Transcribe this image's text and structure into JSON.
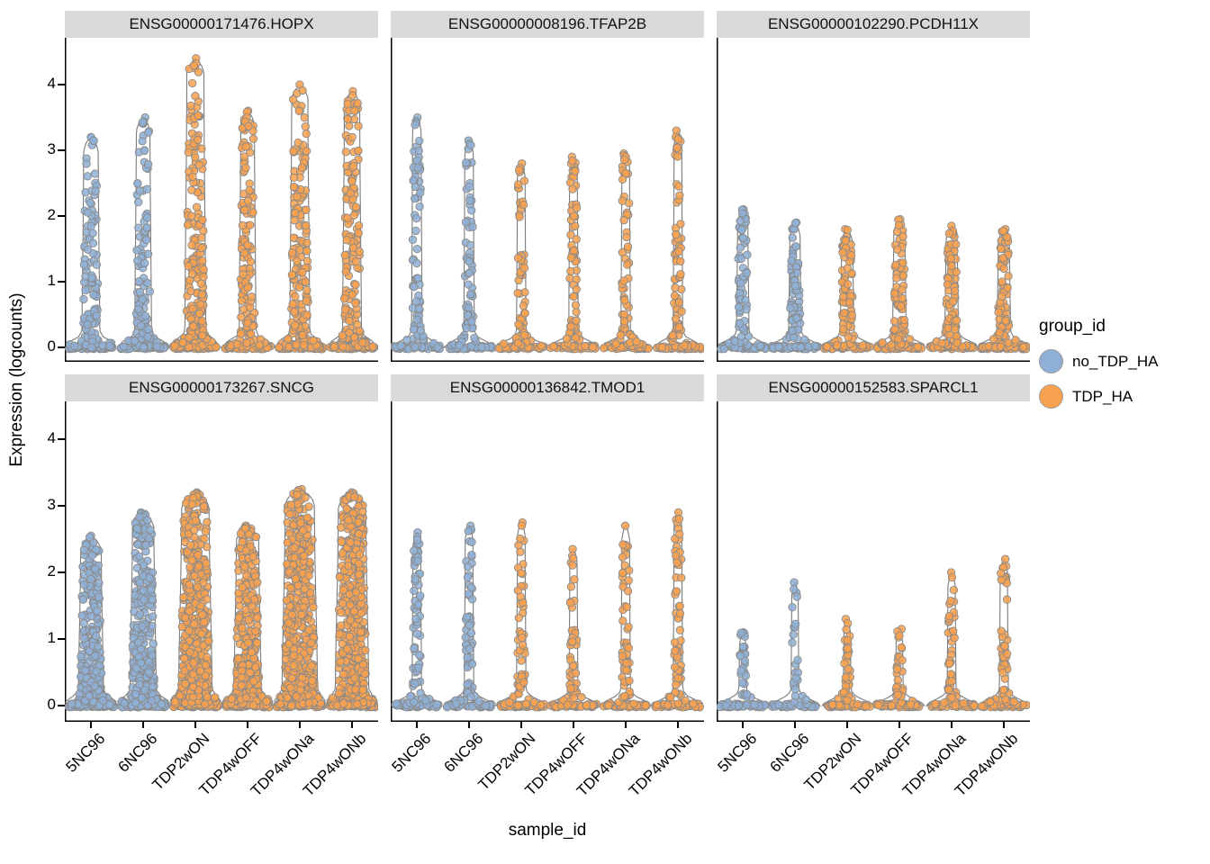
{
  "chart_data": {
    "type": "violin-jitter",
    "xlabel": "sample_id",
    "ylabel": "Expression (logcounts)",
    "yticks": [
      0,
      1,
      2,
      3,
      4
    ],
    "ylim": [
      0,
      4.5
    ],
    "categories": [
      "5NC96",
      "6NC96",
      "TDP2wON",
      "TDP4wOFF",
      "TDP4wONa",
      "TDP4wONb"
    ],
    "category_groups": [
      "no_TDP_HA",
      "no_TDP_HA",
      "TDP_HA",
      "TDP_HA",
      "TDP_HA",
      "TDP_HA"
    ],
    "legend": {
      "title": "group_id",
      "entries": [
        {
          "label": "no_TDP_HA",
          "color": "#8FB0D6"
        },
        {
          "label": "TDP_HA",
          "color": "#F9A14E"
        }
      ]
    },
    "style": {
      "violin_outline": "#7a7a7a",
      "point_stroke": "#8a8a8a",
      "strip_bg": "#D9D9D9",
      "axis_color": "#000000",
      "panel_bg": "#ffffff"
    },
    "facets": [
      {
        "title": "ENSG00000171476.HOPX",
        "skew": 2.2,
        "n_zero": 50,
        "samples": [
          {
            "max": 3.2,
            "n": 130,
            "stem": 0.34
          },
          {
            "max": 3.5,
            "n": 120,
            "stem": 0.32
          },
          {
            "max": 4.4,
            "n": 210,
            "stem": 0.4
          },
          {
            "max": 3.6,
            "n": 140,
            "stem": 0.32
          },
          {
            "max": 4.0,
            "n": 190,
            "stem": 0.38
          },
          {
            "max": 3.9,
            "n": 180,
            "stem": 0.36
          }
        ]
      },
      {
        "title": "ENSG00000008196.TFAP2B",
        "skew": 1.8,
        "n_zero": 50,
        "samples": [
          {
            "max": 3.5,
            "n": 80,
            "stem": 0.2
          },
          {
            "max": 3.15,
            "n": 70,
            "stem": 0.2
          },
          {
            "max": 2.8,
            "n": 65,
            "stem": 0.18
          },
          {
            "max": 2.9,
            "n": 75,
            "stem": 0.18
          },
          {
            "max": 2.95,
            "n": 65,
            "stem": 0.18
          },
          {
            "max": 3.3,
            "n": 75,
            "stem": 0.18
          }
        ]
      },
      {
        "title": "ENSG00000102290.PCDH11X",
        "skew": 1.4,
        "n_zero": 50,
        "samples": [
          {
            "max": 2.1,
            "n": 65,
            "stem": 0.24
          },
          {
            "max": 1.9,
            "n": 75,
            "stem": 0.24
          },
          {
            "max": 1.8,
            "n": 80,
            "stem": 0.26
          },
          {
            "max": 1.95,
            "n": 85,
            "stem": 0.26
          },
          {
            "max": 1.85,
            "n": 85,
            "stem": 0.26
          },
          {
            "max": 1.8,
            "n": 85,
            "stem": 0.26
          }
        ]
      },
      {
        "title": "ENSG00000173267.SNCG",
        "skew": 1.6,
        "n_zero": 70,
        "samples": [
          {
            "max": 2.55,
            "n": 260,
            "stem": 0.48
          },
          {
            "max": 2.9,
            "n": 300,
            "stem": 0.5
          },
          {
            "max": 3.2,
            "n": 460,
            "stem": 0.64
          },
          {
            "max": 2.7,
            "n": 320,
            "stem": 0.52
          },
          {
            "max": 3.25,
            "n": 520,
            "stem": 0.68
          },
          {
            "max": 3.2,
            "n": 470,
            "stem": 0.64
          }
        ]
      },
      {
        "title": "ENSG00000136842.TMOD1",
        "skew": 1.8,
        "n_zero": 50,
        "samples": [
          {
            "max": 2.6,
            "n": 75,
            "stem": 0.18
          },
          {
            "max": 2.7,
            "n": 65,
            "stem": 0.18
          },
          {
            "max": 2.75,
            "n": 60,
            "stem": 0.18
          },
          {
            "max": 2.35,
            "n": 55,
            "stem": 0.17
          },
          {
            "max": 2.7,
            "n": 60,
            "stem": 0.18
          },
          {
            "max": 2.9,
            "n": 70,
            "stem": 0.18
          }
        ]
      },
      {
        "title": "ENSG00000152583.SPARCL1",
        "skew": 2.0,
        "n_zero": 50,
        "samples": [
          {
            "max": 1.1,
            "n": 35,
            "stem": 0.15
          },
          {
            "max": 1.85,
            "n": 28,
            "stem": 0.15
          },
          {
            "max": 1.3,
            "n": 40,
            "stem": 0.15
          },
          {
            "max": 1.15,
            "n": 35,
            "stem": 0.15
          },
          {
            "max": 2.0,
            "n": 50,
            "stem": 0.17
          },
          {
            "max": 2.2,
            "n": 55,
            "stem": 0.17
          }
        ]
      }
    ]
  }
}
